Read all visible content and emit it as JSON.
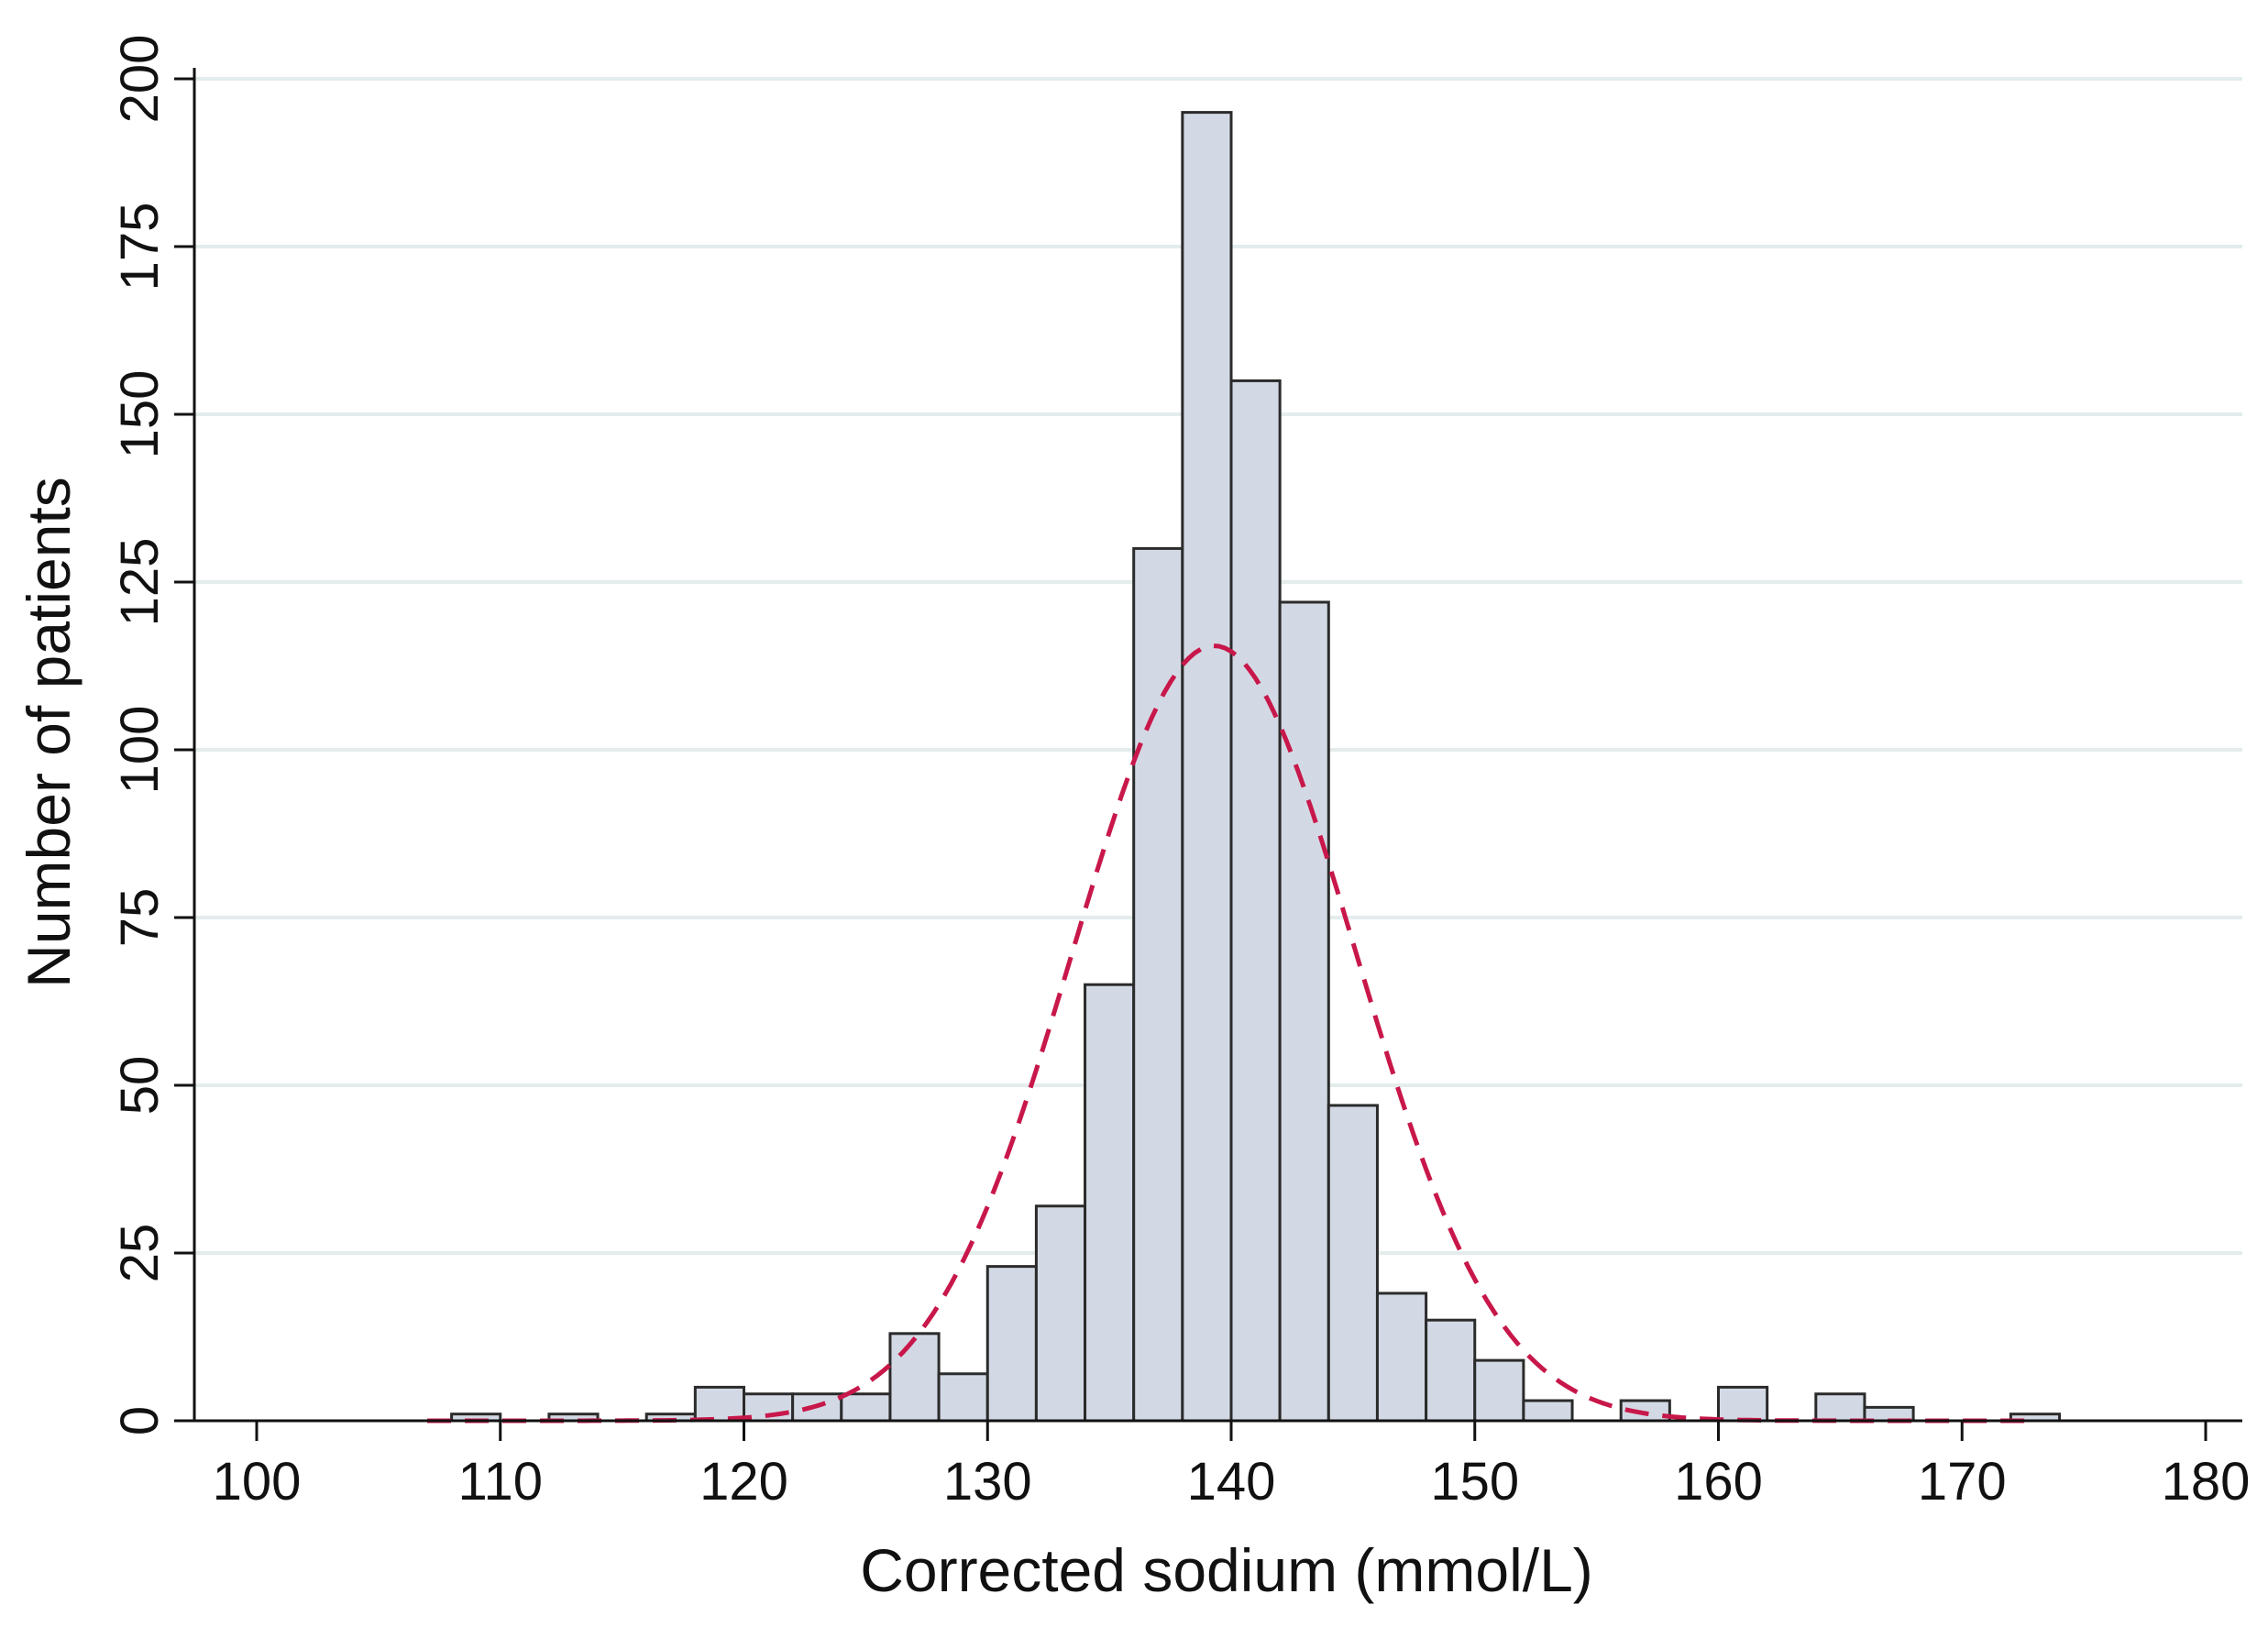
{
  "chart_data": {
    "type": "bar",
    "subtype": "histogram",
    "title": "",
    "xlabel": "Corrected sodium (mmol/L)",
    "ylabel": "Number of patients",
    "xlim": [
      100,
      180
    ],
    "ylim": [
      0,
      200
    ],
    "xticks": [
      100,
      110,
      120,
      130,
      140,
      150,
      160,
      170,
      180
    ],
    "yticks": [
      0,
      25,
      50,
      75,
      100,
      125,
      150,
      175,
      200
    ],
    "grid": "horizontal",
    "bin_width": 2,
    "bin_starts": [
      108,
      112,
      116,
      118,
      120,
      122,
      124,
      126,
      128,
      130,
      132,
      134,
      136,
      138,
      140,
      142,
      144,
      146,
      148,
      150,
      152,
      156,
      160,
      164,
      166,
      172
    ],
    "counts": [
      1,
      1,
      1,
      5,
      4,
      4,
      4,
      13,
      7,
      23,
      32,
      65,
      130,
      195,
      155,
      122,
      47,
      19,
      15,
      9,
      3,
      3,
      5,
      4,
      2,
      1
    ],
    "normal_curve": {
      "mean": 139.3,
      "sd": 5.8,
      "peak": 115.5,
      "style": "dashed"
    },
    "colors": {
      "bar_fill": "#D3D9E4",
      "bar_stroke": "#2B2B2B",
      "curve": "#C8174A",
      "grid": "#E4ECEC",
      "axis": "#111111"
    }
  }
}
